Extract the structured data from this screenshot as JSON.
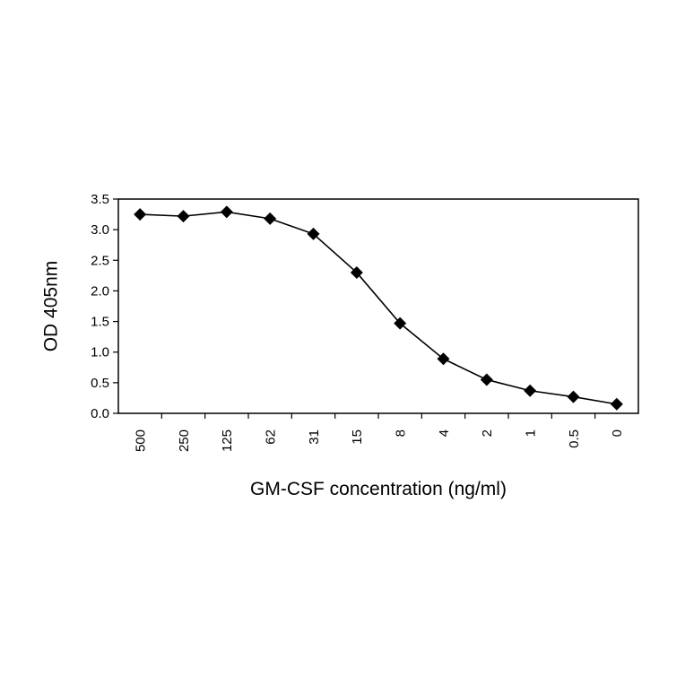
{
  "chart_data": {
    "type": "line",
    "title": "",
    "xlabel": "GM-CSF concentration (ng/ml)",
    "ylabel": "OD 405nm",
    "categories": [
      "500",
      "250",
      "125",
      "62",
      "31",
      "15",
      "8",
      "4",
      "2",
      "1",
      "0.5",
      "0"
    ],
    "series": [
      {
        "values": [
          3.25,
          3.22,
          3.29,
          3.18,
          2.93,
          2.3,
          1.47,
          0.89,
          0.55,
          0.37,
          0.27,
          0.15
        ],
        "marker": "diamond",
        "color": "#000000"
      }
    ],
    "yticks": [
      "0.0",
      "0.5",
      "1.0",
      "1.5",
      "2.0",
      "2.5",
      "3.0",
      "3.5"
    ],
    "ylim": [
      0,
      3.5
    ],
    "grid": false,
    "legend": "none"
  }
}
